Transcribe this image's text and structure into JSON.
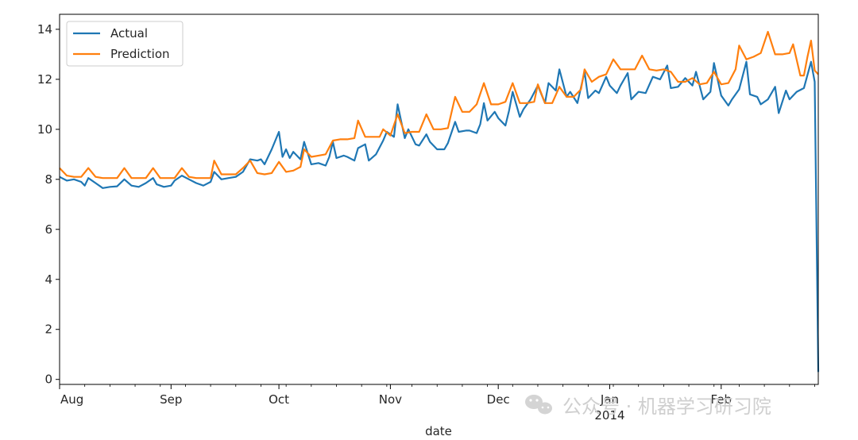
{
  "chart_data": {
    "type": "line",
    "xlabel": "date",
    "ylabel": "",
    "ylim": [
      -0.2,
      14.6
    ],
    "yticks": [
      0,
      2,
      4,
      6,
      8,
      10,
      12,
      14
    ],
    "x_start": "2013-08-01",
    "x_end": "2014-02-28",
    "xticks": [
      {
        "date": "2013-08-01",
        "label": "Aug"
      },
      {
        "date": "2013-09-01",
        "label": "Sep"
      },
      {
        "date": "2013-10-01",
        "label": "Oct"
      },
      {
        "date": "2013-11-01",
        "label": "Nov"
      },
      {
        "date": "2013-12-01",
        "label": "Dec"
      },
      {
        "date": "2014-01-01",
        "label": "Jan",
        "sublabel": "2014"
      },
      {
        "date": "2014-02-01",
        "label": "Feb"
      }
    ],
    "legend": {
      "position": "top-left"
    },
    "grid": false,
    "series": [
      {
        "name": "Actual",
        "color": "#1f77b4",
        "points": [
          [
            "2013-08-01",
            8.1
          ],
          [
            "2013-08-03",
            7.95
          ],
          [
            "2013-08-05",
            8.0
          ],
          [
            "2013-08-07",
            7.9
          ],
          [
            "2013-08-08",
            7.75
          ],
          [
            "2013-08-09",
            8.05
          ],
          [
            "2013-08-11",
            7.85
          ],
          [
            "2013-08-13",
            7.65
          ],
          [
            "2013-08-15",
            7.7
          ],
          [
            "2013-08-17",
            7.72
          ],
          [
            "2013-08-19",
            8.0
          ],
          [
            "2013-08-21",
            7.75
          ],
          [
            "2013-08-23",
            7.7
          ],
          [
            "2013-08-25",
            7.85
          ],
          [
            "2013-08-27",
            8.05
          ],
          [
            "2013-08-28",
            7.8
          ],
          [
            "2013-08-30",
            7.7
          ],
          [
            "2013-09-01",
            7.75
          ],
          [
            "2013-09-02",
            7.95
          ],
          [
            "2013-09-04",
            8.15
          ],
          [
            "2013-09-06",
            8.0
          ],
          [
            "2013-09-08",
            7.85
          ],
          [
            "2013-09-10",
            7.75
          ],
          [
            "2013-09-12",
            7.9
          ],
          [
            "2013-09-13",
            8.3
          ],
          [
            "2013-09-15",
            8.0
          ],
          [
            "2013-09-17",
            8.05
          ],
          [
            "2013-09-19",
            8.1
          ],
          [
            "2013-09-21",
            8.3
          ],
          [
            "2013-09-23",
            8.8
          ],
          [
            "2013-09-25",
            8.75
          ],
          [
            "2013-09-26",
            8.8
          ],
          [
            "2013-09-27",
            8.6
          ],
          [
            "2013-09-29",
            9.2
          ],
          [
            "2013-10-01",
            9.9
          ],
          [
            "2013-10-02",
            8.9
          ],
          [
            "2013-10-03",
            9.2
          ],
          [
            "2013-10-04",
            8.85
          ],
          [
            "2013-10-05",
            9.1
          ],
          [
            "2013-10-07",
            8.8
          ],
          [
            "2013-10-08",
            9.5
          ],
          [
            "2013-10-10",
            8.6
          ],
          [
            "2013-10-12",
            8.65
          ],
          [
            "2013-10-14",
            8.55
          ],
          [
            "2013-10-15",
            8.9
          ],
          [
            "2013-10-16",
            9.5
          ],
          [
            "2013-10-17",
            8.85
          ],
          [
            "2013-10-19",
            8.95
          ],
          [
            "2013-10-20",
            8.9
          ],
          [
            "2013-10-22",
            8.75
          ],
          [
            "2013-10-23",
            9.25
          ],
          [
            "2013-10-25",
            9.4
          ],
          [
            "2013-10-26",
            8.75
          ],
          [
            "2013-10-28",
            9.0
          ],
          [
            "2013-10-30",
            9.55
          ],
          [
            "2013-10-31",
            9.9
          ],
          [
            "2013-11-02",
            9.7
          ],
          [
            "2013-11-03",
            11.0
          ],
          [
            "2013-11-05",
            9.65
          ],
          [
            "2013-11-06",
            10.0
          ],
          [
            "2013-11-08",
            9.4
          ],
          [
            "2013-11-09",
            9.35
          ],
          [
            "2013-11-11",
            9.8
          ],
          [
            "2013-11-12",
            9.5
          ],
          [
            "2013-11-14",
            9.2
          ],
          [
            "2013-11-16",
            9.2
          ],
          [
            "2013-11-17",
            9.45
          ],
          [
            "2013-11-19",
            10.3
          ],
          [
            "2013-11-20",
            9.9
          ],
          [
            "2013-11-22",
            9.95
          ],
          [
            "2013-11-23",
            9.95
          ],
          [
            "2013-11-25",
            9.85
          ],
          [
            "2013-11-26",
            10.2
          ],
          [
            "2013-11-27",
            11.05
          ],
          [
            "2013-11-28",
            10.35
          ],
          [
            "2013-11-30",
            10.7
          ],
          [
            "2013-12-01",
            10.45
          ],
          [
            "2013-12-03",
            10.15
          ],
          [
            "2013-12-04",
            10.75
          ],
          [
            "2013-12-05",
            11.5
          ],
          [
            "2013-12-07",
            10.5
          ],
          [
            "2013-12-08",
            10.8
          ],
          [
            "2013-12-10",
            11.2
          ],
          [
            "2013-12-12",
            11.75
          ],
          [
            "2013-12-14",
            11.05
          ],
          [
            "2013-12-15",
            11.85
          ],
          [
            "2013-12-17",
            11.55
          ],
          [
            "2013-12-18",
            12.4
          ],
          [
            "2013-12-20",
            11.3
          ],
          [
            "2013-12-21",
            11.5
          ],
          [
            "2013-12-23",
            11.05
          ],
          [
            "2013-12-25",
            12.3
          ],
          [
            "2013-12-26",
            11.25
          ],
          [
            "2013-12-28",
            11.55
          ],
          [
            "2013-12-29",
            11.45
          ],
          [
            "2013-12-31",
            12.1
          ],
          [
            "2014-01-01",
            11.75
          ],
          [
            "2014-01-03",
            11.45
          ],
          [
            "2014-01-04",
            11.75
          ],
          [
            "2014-01-06",
            12.25
          ],
          [
            "2014-01-07",
            11.2
          ],
          [
            "2014-01-09",
            11.5
          ],
          [
            "2014-01-11",
            11.45
          ],
          [
            "2014-01-13",
            12.1
          ],
          [
            "2014-01-15",
            12.0
          ],
          [
            "2014-01-17",
            12.55
          ],
          [
            "2014-01-18",
            11.65
          ],
          [
            "2014-01-20",
            11.7
          ],
          [
            "2014-01-22",
            12.05
          ],
          [
            "2014-01-24",
            11.75
          ],
          [
            "2014-01-25",
            12.3
          ],
          [
            "2014-01-27",
            11.2
          ],
          [
            "2014-01-29",
            11.5
          ],
          [
            "2014-01-30",
            12.65
          ],
          [
            "2014-02-01",
            11.35
          ],
          [
            "2014-02-03",
            10.95
          ],
          [
            "2014-02-04",
            11.2
          ],
          [
            "2014-02-06",
            11.6
          ],
          [
            "2014-02-08",
            12.7
          ],
          [
            "2014-02-09",
            11.4
          ],
          [
            "2014-02-11",
            11.3
          ],
          [
            "2014-02-12",
            11.0
          ],
          [
            "2014-02-14",
            11.2
          ],
          [
            "2014-02-16",
            11.7
          ],
          [
            "2014-02-17",
            10.65
          ],
          [
            "2014-02-19",
            11.55
          ],
          [
            "2014-02-20",
            11.2
          ],
          [
            "2014-02-22",
            11.5
          ],
          [
            "2014-02-24",
            11.65
          ],
          [
            "2014-02-26",
            12.7
          ],
          [
            "2014-02-27",
            11.9
          ],
          [
            "2014-02-28",
            0.3
          ]
        ]
      },
      {
        "name": "Prediction",
        "color": "#ff7f0e",
        "points": [
          [
            "2013-08-01",
            8.45
          ],
          [
            "2013-08-03",
            8.15
          ],
          [
            "2013-08-05",
            8.1
          ],
          [
            "2013-08-07",
            8.1
          ],
          [
            "2013-08-09",
            8.45
          ],
          [
            "2013-08-11",
            8.1
          ],
          [
            "2013-08-13",
            8.05
          ],
          [
            "2013-08-15",
            8.05
          ],
          [
            "2013-08-17",
            8.05
          ],
          [
            "2013-08-19",
            8.45
          ],
          [
            "2013-08-21",
            8.05
          ],
          [
            "2013-08-23",
            8.05
          ],
          [
            "2013-08-25",
            8.05
          ],
          [
            "2013-08-27",
            8.45
          ],
          [
            "2013-08-29",
            8.05
          ],
          [
            "2013-08-31",
            8.05
          ],
          [
            "2013-09-02",
            8.05
          ],
          [
            "2013-09-04",
            8.45
          ],
          [
            "2013-09-06",
            8.1
          ],
          [
            "2013-09-08",
            8.05
          ],
          [
            "2013-09-10",
            8.05
          ],
          [
            "2013-09-12",
            8.05
          ],
          [
            "2013-09-13",
            8.75
          ],
          [
            "2013-09-15",
            8.2
          ],
          [
            "2013-09-17",
            8.2
          ],
          [
            "2013-09-19",
            8.2
          ],
          [
            "2013-09-21",
            8.45
          ],
          [
            "2013-09-23",
            8.75
          ],
          [
            "2013-09-25",
            8.25
          ],
          [
            "2013-09-27",
            8.2
          ],
          [
            "2013-09-29",
            8.25
          ],
          [
            "2013-10-01",
            8.7
          ],
          [
            "2013-10-03",
            8.3
          ],
          [
            "2013-10-05",
            8.35
          ],
          [
            "2013-10-07",
            8.5
          ],
          [
            "2013-10-08",
            9.2
          ],
          [
            "2013-10-10",
            8.9
          ],
          [
            "2013-10-12",
            8.95
          ],
          [
            "2013-10-14",
            9.0
          ],
          [
            "2013-10-16",
            9.55
          ],
          [
            "2013-10-18",
            9.6
          ],
          [
            "2013-10-20",
            9.6
          ],
          [
            "2013-10-22",
            9.65
          ],
          [
            "2013-10-23",
            10.35
          ],
          [
            "2013-10-25",
            9.7
          ],
          [
            "2013-10-27",
            9.7
          ],
          [
            "2013-10-29",
            9.7
          ],
          [
            "2013-10-30",
            10.0
          ],
          [
            "2013-11-01",
            9.75
          ],
          [
            "2013-11-03",
            10.6
          ],
          [
            "2013-11-05",
            9.85
          ],
          [
            "2013-11-07",
            9.9
          ],
          [
            "2013-11-09",
            9.9
          ],
          [
            "2013-11-11",
            10.6
          ],
          [
            "2013-11-13",
            10.0
          ],
          [
            "2013-11-15",
            10.0
          ],
          [
            "2013-11-17",
            10.05
          ],
          [
            "2013-11-19",
            11.3
          ],
          [
            "2013-11-21",
            10.7
          ],
          [
            "2013-11-23",
            10.7
          ],
          [
            "2013-11-25",
            11.0
          ],
          [
            "2013-11-27",
            11.85
          ],
          [
            "2013-11-29",
            11.0
          ],
          [
            "2013-12-01",
            11.0
          ],
          [
            "2013-12-03",
            11.1
          ],
          [
            "2013-12-05",
            11.85
          ],
          [
            "2013-12-07",
            11.05
          ],
          [
            "2013-12-09",
            11.05
          ],
          [
            "2013-12-11",
            11.1
          ],
          [
            "2013-12-12",
            11.8
          ],
          [
            "2013-12-14",
            11.05
          ],
          [
            "2013-12-16",
            11.05
          ],
          [
            "2013-12-18",
            11.7
          ],
          [
            "2013-12-20",
            11.3
          ],
          [
            "2013-12-22",
            11.3
          ],
          [
            "2013-12-24",
            11.6
          ],
          [
            "2013-12-25",
            12.4
          ],
          [
            "2013-12-27",
            11.9
          ],
          [
            "2013-12-29",
            12.1
          ],
          [
            "2013-12-31",
            12.2
          ],
          [
            "2014-01-02",
            12.8
          ],
          [
            "2014-01-04",
            12.4
          ],
          [
            "2014-01-06",
            12.4
          ],
          [
            "2014-01-08",
            12.4
          ],
          [
            "2014-01-10",
            12.95
          ],
          [
            "2014-01-12",
            12.4
          ],
          [
            "2014-01-14",
            12.35
          ],
          [
            "2014-01-16",
            12.4
          ],
          [
            "2014-01-18",
            12.3
          ],
          [
            "2014-01-20",
            11.9
          ],
          [
            "2014-01-22",
            11.9
          ],
          [
            "2014-01-24",
            12.05
          ],
          [
            "2014-01-26",
            11.8
          ],
          [
            "2014-01-28",
            11.85
          ],
          [
            "2014-01-30",
            12.3
          ],
          [
            "2014-02-01",
            11.8
          ],
          [
            "2014-02-03",
            11.85
          ],
          [
            "2014-02-05",
            12.4
          ],
          [
            "2014-02-06",
            13.35
          ],
          [
            "2014-02-08",
            12.8
          ],
          [
            "2014-02-10",
            12.9
          ],
          [
            "2014-02-12",
            13.05
          ],
          [
            "2014-02-14",
            13.9
          ],
          [
            "2014-02-16",
            13.0
          ],
          [
            "2014-02-18",
            13.0
          ],
          [
            "2014-02-20",
            13.05
          ],
          [
            "2014-02-21",
            13.4
          ],
          [
            "2014-02-23",
            12.15
          ],
          [
            "2014-02-24",
            12.15
          ],
          [
            "2014-02-25",
            12.9
          ],
          [
            "2014-02-26",
            13.55
          ],
          [
            "2014-02-27",
            12.35
          ],
          [
            "2014-02-28",
            12.2
          ]
        ]
      }
    ]
  },
  "watermark": {
    "text": "公众号 · 机器学习研习院",
    "icon": "wechat-icon"
  }
}
